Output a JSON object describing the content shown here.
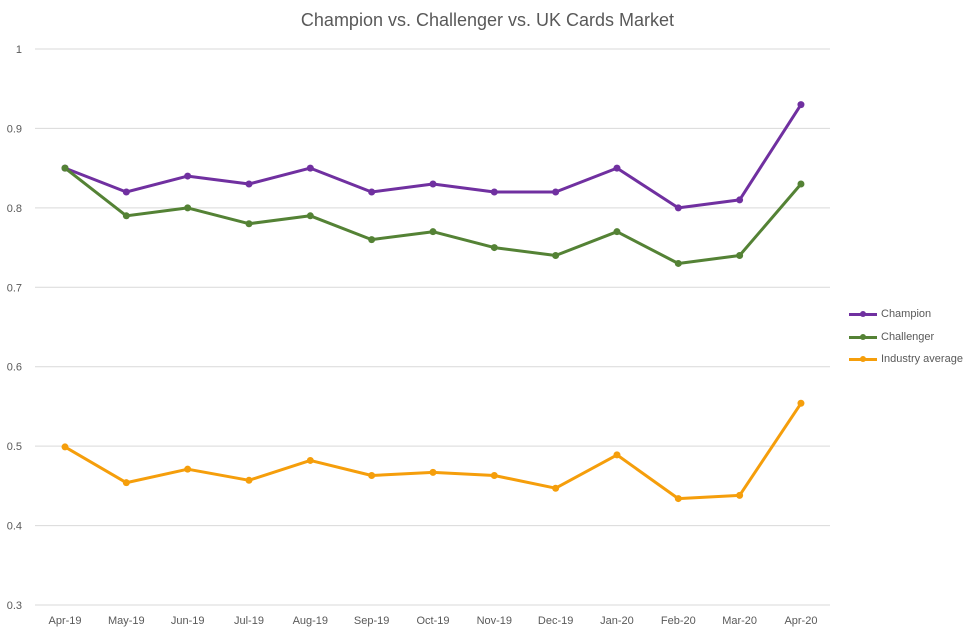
{
  "chart_data": {
    "type": "line",
    "title": "Champion vs. Challenger vs. UK Cards Market",
    "xlabel": "",
    "ylabel": "",
    "categories": [
      "Apr-19",
      "May-19",
      "Jun-19",
      "Jul-19",
      "Aug-19",
      "Sep-19",
      "Oct-19",
      "Nov-19",
      "Dec-19",
      "Jan-20",
      "Feb-20",
      "Mar-20",
      "Apr-20"
    ],
    "ylim": [
      0.3,
      1
    ],
    "yticks": [
      "0.3",
      "0.4",
      "0.5",
      "0.6",
      "0.7",
      "0.8",
      "0.9",
      "1"
    ],
    "grid": true,
    "legend_position": "right",
    "series": [
      {
        "name": "Champion",
        "color": "#7030a0",
        "values": [
          0.85,
          0.82,
          0.84,
          0.83,
          0.85,
          0.82,
          0.83,
          0.82,
          0.82,
          0.85,
          0.8,
          0.81,
          0.93
        ]
      },
      {
        "name": "Challenger",
        "color": "#548235",
        "values": [
          0.85,
          0.79,
          0.8,
          0.78,
          0.79,
          0.76,
          0.77,
          0.75,
          0.74,
          0.77,
          0.73,
          0.74,
          0.83
        ]
      },
      {
        "name": "Industry average",
        "color": "#f59e0b",
        "values": [
          0.499,
          0.454,
          0.471,
          0.457,
          0.482,
          0.463,
          0.467,
          0.463,
          0.447,
          0.489,
          0.434,
          0.438,
          0.554
        ]
      }
    ]
  }
}
